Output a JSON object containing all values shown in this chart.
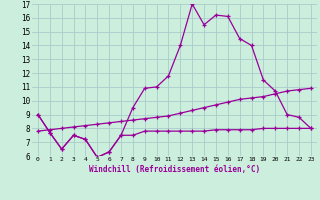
{
  "xlabel": "Windchill (Refroidissement éolien,°C)",
  "x": [
    0,
    1,
    2,
    3,
    4,
    5,
    6,
    7,
    8,
    9,
    10,
    11,
    12,
    13,
    14,
    15,
    16,
    17,
    18,
    19,
    20,
    21,
    22,
    23
  ],
  "line1": [
    9.0,
    7.7,
    6.5,
    7.5,
    7.2,
    5.9,
    6.3,
    7.5,
    9.5,
    10.9,
    11.0,
    11.8,
    14.0,
    17.0,
    15.5,
    16.2,
    16.1,
    14.5,
    14.0,
    11.5,
    10.7,
    9.0,
    8.8,
    8.0
  ],
  "line2": [
    9.0,
    7.7,
    6.5,
    7.5,
    7.2,
    5.9,
    6.3,
    7.5,
    7.5,
    7.8,
    7.8,
    7.8,
    7.8,
    7.8,
    7.8,
    7.9,
    7.9,
    7.9,
    7.9,
    8.0,
    8.0,
    8.0,
    8.0,
    8.0
  ],
  "line3": [
    7.8,
    7.9,
    8.0,
    8.1,
    8.2,
    8.3,
    8.4,
    8.5,
    8.6,
    8.7,
    8.8,
    8.9,
    9.1,
    9.3,
    9.5,
    9.7,
    9.9,
    10.1,
    10.2,
    10.3,
    10.5,
    10.7,
    10.8,
    10.9
  ],
  "ylim_min": 6,
  "ylim_max": 17,
  "yticks": [
    6,
    7,
    8,
    9,
    10,
    11,
    12,
    13,
    14,
    15,
    16,
    17
  ],
  "line_color": "#990099",
  "bg_color": "#cceedd",
  "grid_color": "#aacccc"
}
